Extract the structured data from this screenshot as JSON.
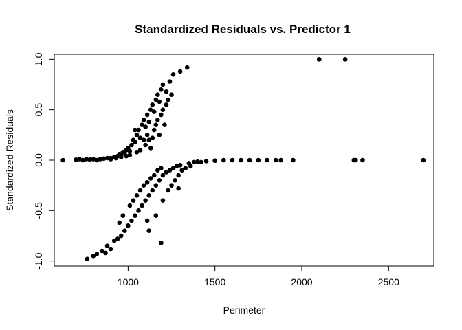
{
  "chart_data": {
    "type": "scatter",
    "title": "Standardized Residuals vs. Predictor 1",
    "xlabel": "Perimeter",
    "ylabel": "Standardized Residuals",
    "xlim": [
      575,
      2760
    ],
    "ylim": [
      -1.05,
      1.05
    ],
    "x_ticks": [
      1000,
      1500,
      2000,
      2500
    ],
    "x_tick_labels": [
      "1000",
      "1500",
      "2000",
      "2500"
    ],
    "y_ticks": [
      -1.0,
      -0.5,
      0.0,
      0.5,
      1.0
    ],
    "y_tick_labels": [
      "-1.0",
      "-0.5",
      "0.0",
      "0.5",
      "1.0"
    ],
    "grid": false,
    "point_color": "#000000",
    "points": [
      [
        625,
        0.0
      ],
      [
        700,
        0.005
      ],
      [
        720,
        0.01
      ],
      [
        740,
        0.0
      ],
      [
        760,
        0.01
      ],
      [
        780,
        0.005
      ],
      [
        800,
        0.01
      ],
      [
        820,
        0.0
      ],
      [
        840,
        0.01
      ],
      [
        860,
        0.015
      ],
      [
        880,
        0.02
      ],
      [
        900,
        0.02
      ],
      [
        920,
        0.03
      ],
      [
        940,
        0.04
      ],
      [
        950,
        0.06
      ],
      [
        960,
        0.05
      ],
      [
        970,
        0.08
      ],
      [
        980,
        0.07
      ],
      [
        990,
        0.1
      ],
      [
        1000,
        0.12
      ],
      [
        1010,
        0.09
      ],
      [
        1020,
        0.15
      ],
      [
        1030,
        0.2
      ],
      [
        1040,
        0.18
      ],
      [
        1050,
        0.25
      ],
      [
        1060,
        0.3
      ],
      [
        1070,
        0.22
      ],
      [
        1080,
        0.35
      ],
      [
        1090,
        0.4
      ],
      [
        1100,
        0.33
      ],
      [
        1110,
        0.45
      ],
      [
        1120,
        0.38
      ],
      [
        1130,
        0.5
      ],
      [
        1140,
        0.55
      ],
      [
        1150,
        0.48
      ],
      [
        1160,
        0.6
      ],
      [
        1170,
        0.65
      ],
      [
        1180,
        0.58
      ],
      [
        1190,
        0.7
      ],
      [
        1200,
        0.75
      ],
      [
        1220,
        0.68
      ],
      [
        1240,
        0.78
      ],
      [
        1260,
        0.85
      ],
      [
        1300,
        0.88
      ],
      [
        1340,
        0.92
      ],
      [
        1040,
        0.3
      ],
      [
        1070,
        0.1
      ],
      [
        1090,
        0.2
      ],
      [
        1100,
        0.15
      ],
      [
        1110,
        0.25
      ],
      [
        1120,
        0.2
      ],
      [
        1150,
        0.3
      ],
      [
        1160,
        0.35
      ],
      [
        1170,
        0.4
      ],
      [
        1190,
        0.45
      ],
      [
        1200,
        0.5
      ],
      [
        1180,
        0.25
      ],
      [
        1130,
        0.12
      ],
      [
        1220,
        0.55
      ],
      [
        1230,
        0.6
      ],
      [
        1250,
        0.65
      ],
      [
        1210,
        0.35
      ],
      [
        1140,
        0.22
      ],
      [
        900,
        0.01
      ],
      [
        930,
        0.02
      ],
      [
        960,
        0.03
      ],
      [
        990,
        0.04
      ],
      [
        1010,
        0.05
      ],
      [
        1050,
        0.08
      ],
      [
        765,
        -0.98
      ],
      [
        800,
        -0.95
      ],
      [
        820,
        -0.93
      ],
      [
        850,
        -0.9
      ],
      [
        870,
        -0.92
      ],
      [
        880,
        -0.85
      ],
      [
        900,
        -0.88
      ],
      [
        920,
        -0.8
      ],
      [
        940,
        -0.78
      ],
      [
        960,
        -0.75
      ],
      [
        980,
        -0.7
      ],
      [
        1000,
        -0.65
      ],
      [
        1020,
        -0.6
      ],
      [
        1040,
        -0.55
      ],
      [
        1060,
        -0.5
      ],
      [
        1080,
        -0.45
      ],
      [
        1100,
        -0.4
      ],
      [
        1120,
        -0.35
      ],
      [
        1140,
        -0.3
      ],
      [
        1160,
        -0.25
      ],
      [
        1180,
        -0.2
      ],
      [
        1200,
        -0.15
      ],
      [
        1220,
        -0.12
      ],
      [
        1240,
        -0.1
      ],
      [
        1260,
        -0.08
      ],
      [
        1280,
        -0.06
      ],
      [
        1300,
        -0.05
      ],
      [
        1350,
        -0.03
      ],
      [
        1380,
        -0.02
      ],
      [
        1400,
        -0.015
      ],
      [
        1450,
        -0.01
      ],
      [
        1500,
        -0.005
      ],
      [
        1550,
        0.0
      ],
      [
        1600,
        0.0
      ],
      [
        1650,
        0.0
      ],
      [
        1700,
        0.0
      ],
      [
        1750,
        0.0
      ],
      [
        1800,
        0.0
      ],
      [
        1850,
        0.0
      ],
      [
        1880,
        0.0
      ],
      [
        1950,
        0.0
      ],
      [
        950,
        -0.62
      ],
      [
        970,
        -0.55
      ],
      [
        1010,
        -0.45
      ],
      [
        1030,
        -0.4
      ],
      [
        1050,
        -0.35
      ],
      [
        1070,
        -0.3
      ],
      [
        1090,
        -0.25
      ],
      [
        1110,
        -0.22
      ],
      [
        1130,
        -0.18
      ],
      [
        1150,
        -0.15
      ],
      [
        1170,
        -0.1
      ],
      [
        1190,
        -0.08
      ],
      [
        1110,
        -0.6
      ],
      [
        1120,
        -0.7
      ],
      [
        1160,
        -0.55
      ],
      [
        1190,
        -0.82
      ],
      [
        1200,
        -0.4
      ],
      [
        1230,
        -0.3
      ],
      [
        1250,
        -0.25
      ],
      [
        1270,
        -0.2
      ],
      [
        1290,
        -0.15
      ],
      [
        1310,
        -0.1
      ],
      [
        1330,
        -0.08
      ],
      [
        1360,
        -0.06
      ],
      [
        1290,
        -0.28
      ],
      [
        1420,
        -0.02
      ],
      [
        2100,
        1.0
      ],
      [
        2250,
        1.0
      ],
      [
        2300,
        0.0
      ],
      [
        2310,
        0.0
      ],
      [
        2350,
        0.0
      ],
      [
        2700,
        0.0
      ]
    ]
  }
}
